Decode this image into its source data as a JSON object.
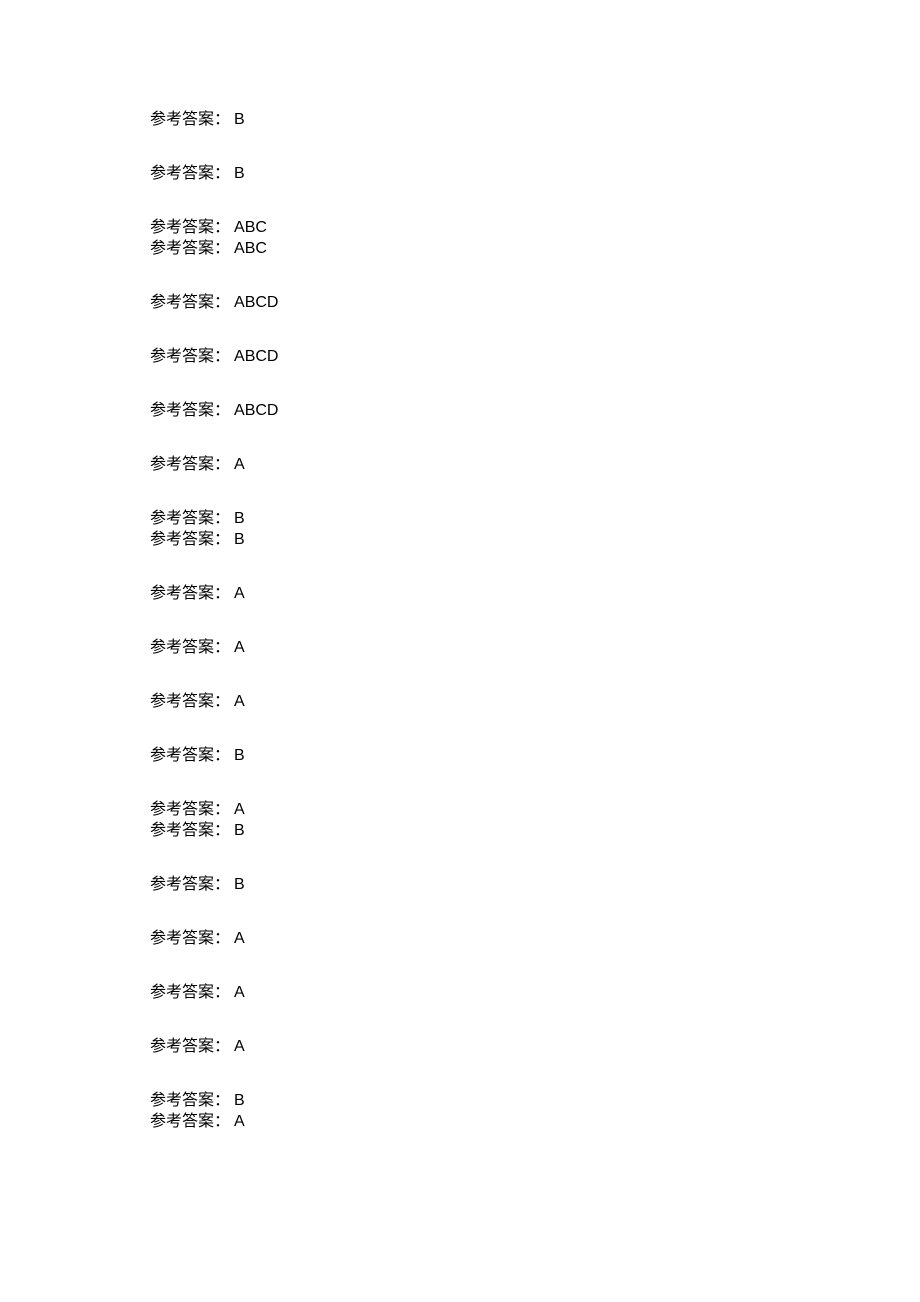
{
  "label": "参考答案：",
  "groups": [
    [
      "B"
    ],
    [
      "B"
    ],
    [
      "ABC",
      "ABC"
    ],
    [
      "ABCD"
    ],
    [
      "ABCD"
    ],
    [
      "ABCD"
    ],
    [
      "A"
    ],
    [
      "B",
      "B"
    ],
    [
      "A"
    ],
    [
      "A"
    ],
    [
      "A"
    ],
    [
      "B"
    ],
    [
      "A",
      "B"
    ],
    [
      "B"
    ],
    [
      "A"
    ],
    [
      "A"
    ],
    [
      "A"
    ],
    [
      "B",
      "A"
    ]
  ],
  "colors": {
    "background": "#ffffff",
    "text": "#000000"
  },
  "fontsize": 16
}
